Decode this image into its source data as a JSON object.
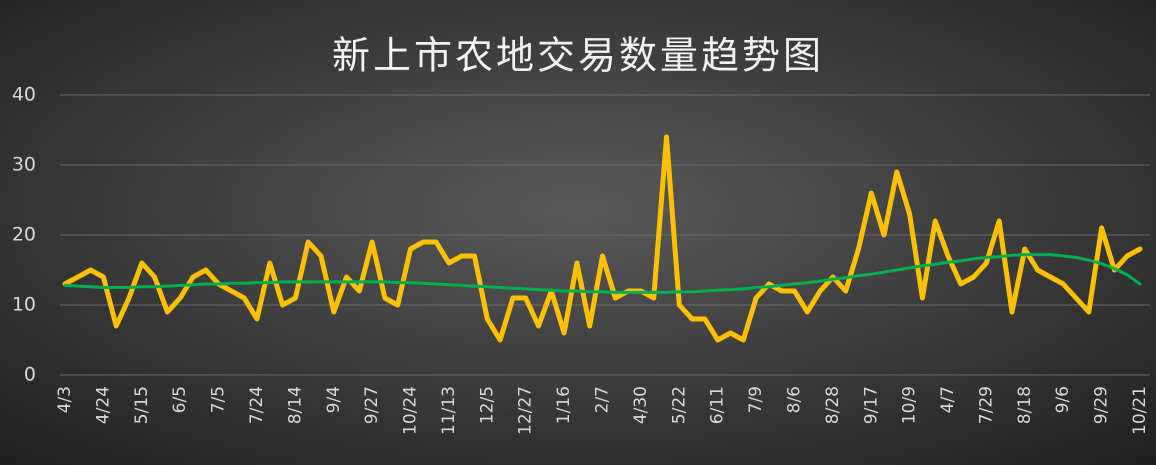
{
  "chart_data": {
    "type": "line",
    "title": "新上市农地交易数量趋势图",
    "categories": [
      "4/3",
      null,
      null,
      "4/24",
      null,
      null,
      "5/15",
      null,
      null,
      "6/5",
      null,
      null,
      "7/5",
      null,
      null,
      "7/24",
      null,
      null,
      "8/14",
      null,
      null,
      "9/4",
      null,
      null,
      "9/27",
      null,
      null,
      "10/24",
      null,
      null,
      "11/13",
      null,
      null,
      "12/5",
      null,
      null,
      "12/27",
      null,
      null,
      "1/16",
      null,
      null,
      "2/7",
      null,
      null,
      "4/30",
      null,
      null,
      "5/22",
      null,
      null,
      "6/11",
      null,
      null,
      "7/9",
      null,
      null,
      "8/6",
      null,
      null,
      "8/28",
      null,
      null,
      "9/17",
      null,
      null,
      "10/9",
      null,
      null,
      "4/7",
      null,
      null,
      "7/29",
      null,
      null,
      "8/18",
      null,
      null,
      "9/6",
      null,
      null,
      "9/29",
      null,
      null,
      "10/21"
    ],
    "series": [
      {
        "color": "#ffc000",
        "width": 5,
        "values": [
          13,
          14,
          15,
          14,
          7,
          11,
          16,
          14,
          9,
          11,
          14,
          15,
          13,
          12,
          11,
          8,
          16,
          10,
          11,
          19,
          17,
          9,
          14,
          12,
          19,
          11,
          10,
          18,
          19,
          19,
          16,
          17,
          17,
          8,
          5,
          11,
          11,
          7,
          12,
          6,
          16,
          7,
          17,
          11,
          12,
          12,
          11,
          34,
          10,
          8,
          8,
          5,
          6,
          5,
          11,
          13,
          12,
          12,
          9,
          12,
          14,
          12,
          18,
          26,
          20,
          29,
          23,
          11,
          22,
          17,
          13,
          14,
          16,
          22,
          9,
          18,
          15,
          14,
          13,
          11,
          9,
          21,
          15,
          17,
          18
        ]
      },
      {
        "color": "#00b050",
        "width": 3,
        "values": [
          12.8,
          12.7,
          12.6,
          12.5,
          12.5,
          12.5,
          12.6,
          12.6,
          12.7,
          12.8,
          12.9,
          13.0,
          13.0,
          13.1,
          13.1,
          13.2,
          13.2,
          13.3,
          13.3,
          13.3,
          13.3,
          13.3,
          13.3,
          13.3,
          13.3,
          13.3,
          13.2,
          13.2,
          13.1,
          13.0,
          12.9,
          12.8,
          12.7,
          12.6,
          12.5,
          12.4,
          12.3,
          12.2,
          12.1,
          12.0,
          12.0,
          11.9,
          11.9,
          11.8,
          11.8,
          11.8,
          11.8,
          11.8,
          11.9,
          11.9,
          12.0,
          12.1,
          12.2,
          12.3,
          12.5,
          12.6,
          12.8,
          13.0,
          13.2,
          13.4,
          13.7,
          13.9,
          14.2,
          14.4,
          14.7,
          15.0,
          15.3,
          15.6,
          15.8,
          16.1,
          16.3,
          16.6,
          16.8,
          16.9,
          17.1,
          17.2,
          17.2,
          17.2,
          17.0,
          16.8,
          16.4,
          15.9,
          15.2,
          14.3,
          13.0
        ]
      }
    ],
    "ylim": [
      0,
      40
    ],
    "yticks": [
      0,
      10,
      20,
      30,
      40
    ],
    "grid": true
  }
}
